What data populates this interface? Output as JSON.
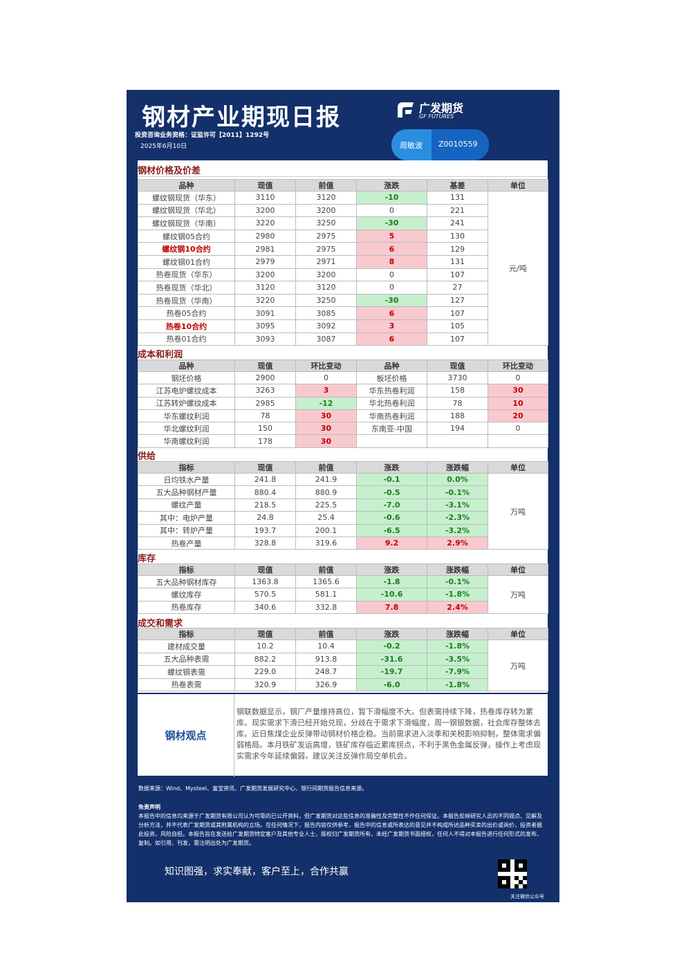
{
  "header": {
    "title": "钢材产业期现日报",
    "subtitle": "投资咨询业务资格：证监许可【2011】1292号",
    "date": "2025年6月10日",
    "logo_cn": "广发期货",
    "logo_en": "GF FUTURES",
    "analyst_name": "周敏波",
    "analyst_id": "Z0010559"
  },
  "sections": [
    {
      "title": "钢材价格及价差",
      "columns": [
        "品种",
        "现值",
        "前值",
        "涨跌",
        "基差",
        "单位"
      ],
      "unit": "元/吨",
      "rows": [
        [
          "螺纹钢现货（华东）",
          "3110",
          "3120",
          "-10",
          "131"
        ],
        [
          "螺纹钢现货（华北）",
          "3200",
          "3200",
          "0",
          "221"
        ],
        [
          "螺纹钢现货（华南）",
          "3220",
          "3250",
          "-30",
          "241"
        ],
        [
          "螺纹钢05合约",
          "2980",
          "2975",
          "5",
          "130"
        ],
        [
          "螺纹钢10合约",
          "2981",
          "2975",
          "6",
          "129"
        ],
        [
          "螺纹钢01合约",
          "2979",
          "2971",
          "8",
          "131"
        ],
        [
          "热卷现货（华东）",
          "3200",
          "3200",
          "0",
          "107"
        ],
        [
          "热卷现货（华北）",
          "3120",
          "3120",
          "0",
          "27"
        ],
        [
          "热卷现货（华南）",
          "3220",
          "3250",
          "-30",
          "127"
        ],
        [
          "热卷05合约",
          "3091",
          "3085",
          "6",
          "107"
        ],
        [
          "热卷10合约",
          "3095",
          "3092",
          "3",
          "105"
        ],
        [
          "热卷01合约",
          "3093",
          "3087",
          "6",
          "107"
        ]
      ]
    },
    {
      "title": "成本和利润",
      "columns": [
        "品种",
        "现值",
        "环比变动",
        "品种",
        "现值",
        "环比变动"
      ],
      "rows": [
        [
          "钢坯价格",
          "2900",
          "0",
          "板坯价格",
          "3730",
          "0"
        ],
        [
          "江苏电炉螺纹成本",
          "3263",
          "3",
          "华东热卷利润",
          "158",
          "30"
        ],
        [
          "江苏转炉螺纹成本",
          "2985",
          "-12",
          "华北热卷利润",
          "78",
          "10"
        ],
        [
          "华东螺纹利润",
          "78",
          "30",
          "华南热卷利润",
          "188",
          "20"
        ],
        [
          "华北螺纹利润",
          "150",
          "30",
          "东南亚-中国",
          "194",
          "0"
        ],
        [
          "华南螺纹利润",
          "178",
          "30"
        ]
      ]
    },
    {
      "title": "供给",
      "columns": [
        "指标",
        "现值",
        "前值",
        "涨跌",
        "涨跌幅",
        "单位"
      ],
      "unit": "万吨",
      "rows": [
        [
          "日均铁水产量",
          "241.8",
          "241.9",
          "-0.1",
          "0.0%"
        ],
        [
          "五大品种钢材产量",
          "880.4",
          "880.9",
          "-0.5",
          "-0.1%"
        ],
        [
          "螺纹产量",
          "218.5",
          "225.5",
          "-7.0",
          "-3.1%"
        ],
        [
          "其中：电炉产量",
          "24.8",
          "25.4",
          "-0.6",
          "-2.3%"
        ],
        [
          "其中：转炉产量",
          "193.7",
          "200.1",
          "-6.5",
          "-3.2%"
        ],
        [
          "热卷产量",
          "328.8",
          "319.6",
          "9.2",
          "2.9%"
        ]
      ]
    },
    {
      "title": "库存",
      "columns": [
        "指标",
        "现值",
        "前值",
        "涨跌",
        "涨跌幅",
        "单位"
      ],
      "unit": "万吨",
      "rows": [
        [
          "五大品种钢材库存",
          "1363.8",
          "1365.6",
          "-1.8",
          "-0.1%"
        ],
        [
          "螺纹库存",
          "570.5",
          "581.1",
          "-10.6",
          "-1.8%"
        ],
        [
          "热卷库存",
          "340.6",
          "332.8",
          "7.8",
          "2.4%"
        ]
      ]
    },
    {
      "title": "成交和需求",
      "columns": [
        "指标",
        "现值",
        "前值",
        "涨跌",
        "涨跌幅",
        "单位"
      ],
      "unit": "万吨",
      "rows": [
        [
          "建材成交量",
          "10.2",
          "10.4",
          "-0.2",
          "-1.8%"
        ],
        [
          "五大品种表需",
          "882.2",
          "913.8",
          "-31.6",
          "-3.5%"
        ],
        [
          "螺纹钢表需",
          "229.0",
          "248.7",
          "-19.7",
          "-7.9%"
        ],
        [
          "热卷表需",
          "320.9",
          "326.9",
          "-6.0",
          "-1.8%"
        ]
      ]
    }
  ],
  "view": {
    "label": "钢材观点",
    "text": "钢联数据显示，钢厂产量维持高位，暂下滑幅度不大。但表需持续下降，热卷库存转为累库。现实需求下滑已经开始兑现，分歧在于需求下滑幅度，周一钢银数据，社会库存整体去库。近日焦煤企业反弹带动钢材价格企稳。当前需求进入淡季和关税影响抑制，整体需求偏弱格局。本月铁矿发运高增，铁矿库存临近累库拐点，不利于黑色金属反弹，操作上考虑现实需求今年延续偏弱，建议关注反弹作局空单机会。"
  },
  "footer": {
    "source": "数据来源：Wind、Mysteel、富宝资讯、广发期货发展研究中心、银行间期货报告信息来源。",
    "disclaimer_title": "免责声明",
    "disclaimer": "本报告中的信息均来源于广发期货有限公司认为可靠的已公开资料，但广发期货对这些信息的准确性及完整性不作任何保证。本报告反映研究人员的不同观点、见解及分析方法，并不代表广发期货或其附属机构的立场。在任何情况下，报告内容仅供参考，报告中的信息或所表达的意见并不构成所述品种买卖的出价或询价，投资者据此投资，风险自担。本报告旨在发送给广发期货特定客户及其他专业人士，版权归广发期货所有，未经广发期货书面授权，任何人不得对本报告进行任何形式的发布、复制。如引用、刊发，需注明出处为广发期货。",
    "slogan": "知识图强，求实奉献，客户至上，合作共赢",
    "qr_caption": "关注微信公众号"
  }
}
